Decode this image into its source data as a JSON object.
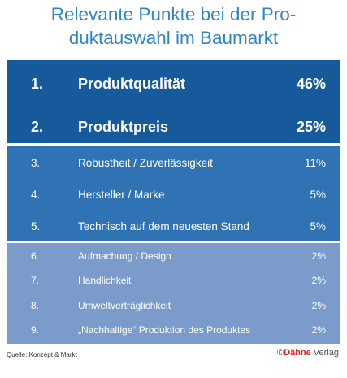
{
  "title_line1": "Relevante Punkte bei der Pro-",
  "title_line2": "duktauswahl im Baumarkt",
  "source": "Quelle: Konzept & Markt",
  "logo": {
    "copyright": "©",
    "brand": "Dähne",
    "suffix": " Verlag"
  },
  "colors": {
    "tier1": "#175a9b",
    "tier2": "#2f73b5",
    "tier3": "#7b9ccb",
    "title": "#2f86c6"
  },
  "chart_data": {
    "type": "table",
    "unit": "%",
    "rows": [
      {
        "rank": "1.",
        "label": "Produktqualität",
        "value": "46%",
        "percent": 46
      },
      {
        "rank": "2.",
        "label": "Produktpreis",
        "value": "25%",
        "percent": 25
      },
      {
        "rank": "3.",
        "label": "Robustheit / Zuverlässigkeit",
        "value": "11%",
        "percent": 11
      },
      {
        "rank": "4.",
        "label": "Hersteller / Marke",
        "value": "5%",
        "percent": 5
      },
      {
        "rank": "5.",
        "label": "Technisch auf dem neuesten Stand",
        "value": "5%",
        "percent": 5
      },
      {
        "rank": "6.",
        "label": "Aufmachung / Design",
        "value": "2%",
        "percent": 2
      },
      {
        "rank": "7.",
        "label": "Handlichkeit",
        "value": "2%",
        "percent": 2
      },
      {
        "rank": "8.",
        "label": "Umweltverträglichkeit",
        "value": "2%",
        "percent": 2
      },
      {
        "rank": "9.",
        "label": "„Nachhaltige“ Produktion des Produktes",
        "value": "2%",
        "percent": 2
      }
    ]
  }
}
